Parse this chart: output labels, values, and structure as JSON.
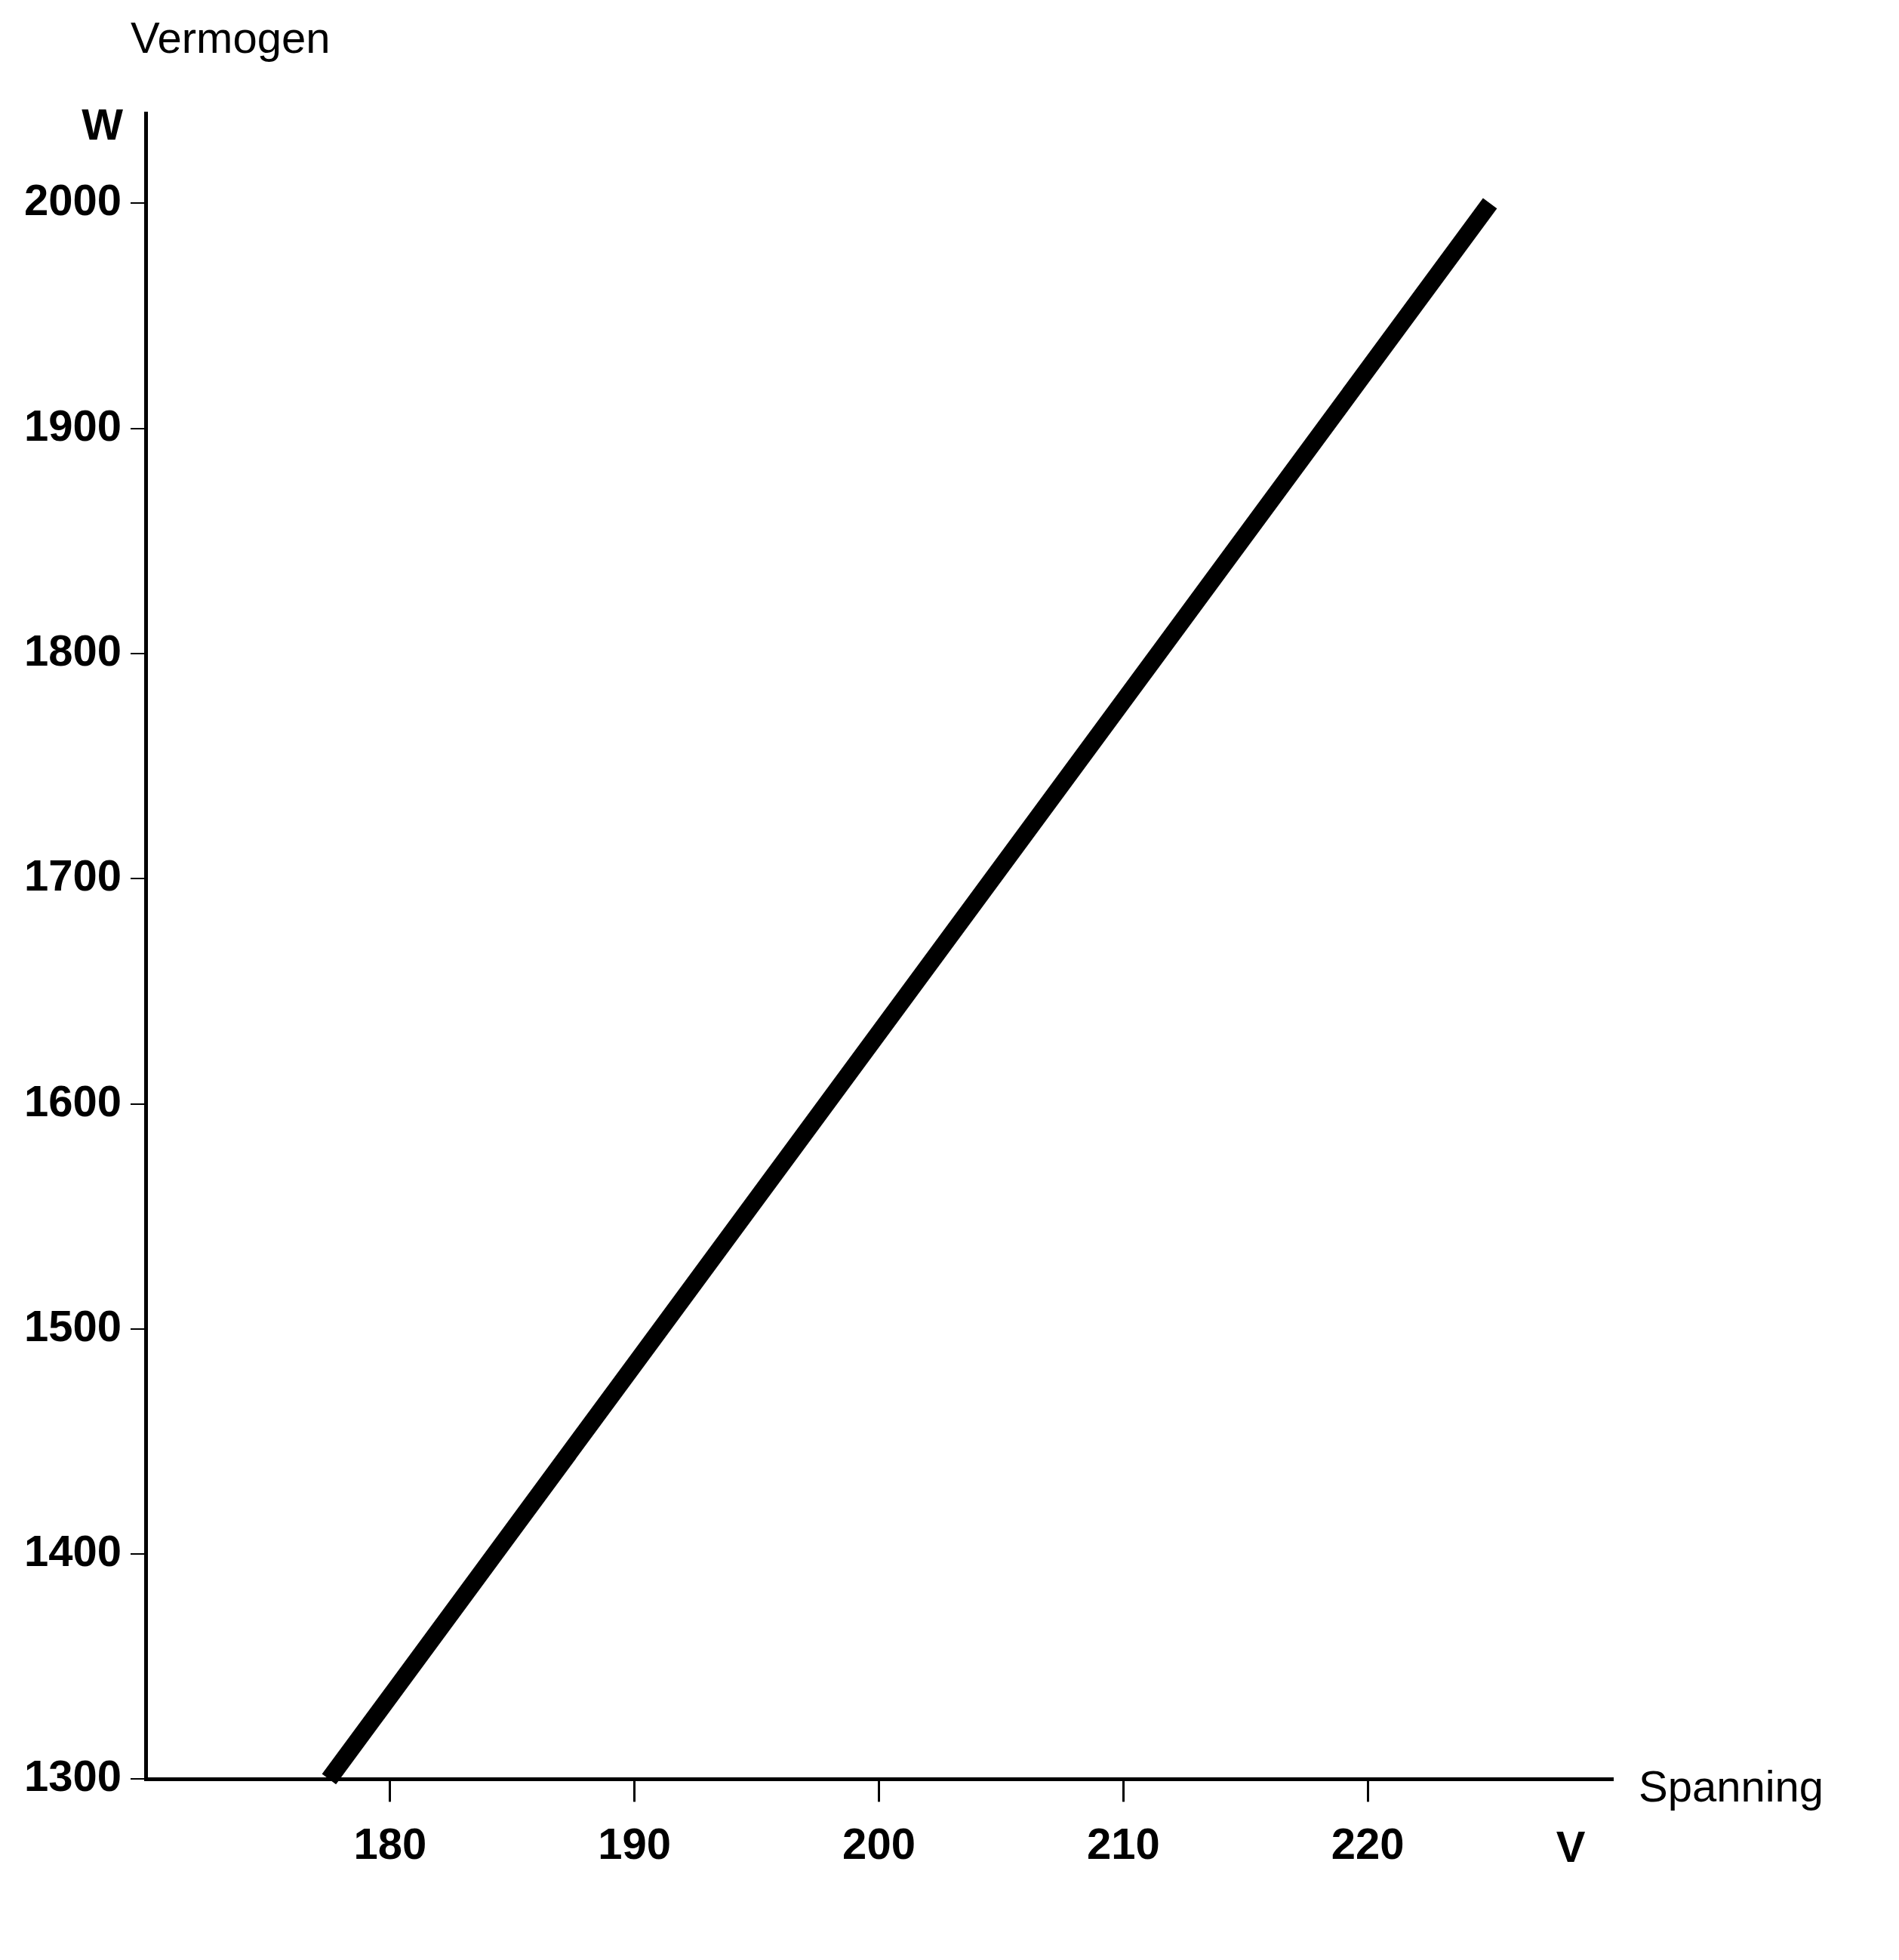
{
  "chart_data": {
    "type": "line",
    "ylabel": "Vermogen",
    "xlabel": "Spanning",
    "annotations": [
      "W",
      "V"
    ],
    "x": [
      177.5,
      225
    ],
    "series": [
      {
        "color": "#000000",
        "values": [
          1300,
          2000
        ]
      }
    ],
    "xlim": [
      170,
      230
    ],
    "xticks": [
      180,
      190,
      200,
      210,
      220
    ],
    "ylim": [
      1300,
      2040
    ],
    "yticks": [
      1300,
      1400,
      1500,
      1600,
      1700,
      1800,
      1900,
      2000
    ],
    "grid": false,
    "legend": false,
    "marker": "none",
    "line_style": "solid"
  }
}
